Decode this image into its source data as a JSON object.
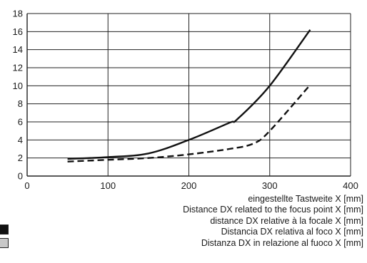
{
  "chart_data": {
    "type": "line",
    "title": "",
    "xlim": [
      0,
      400
    ],
    "ylim": [
      0,
      18
    ],
    "x_ticks": [
      0,
      100,
      200,
      300,
      400
    ],
    "y_ticks": [
      0,
      2,
      4,
      6,
      8,
      10,
      12,
      14,
      16,
      18
    ],
    "grid": true,
    "xlabel_lines": [
      "eingestellte Tastweite X [mm]",
      "Distance DX  related to the focus point X [mm]",
      "distance DX relative à la focale X [mm]",
      "Distancia DX  relativa al foco X [mm]",
      "Distanza DX  in relazione al fuoco X [mm]"
    ],
    "series": [
      {
        "style": "solid",
        "color": "#111111",
        "x": [
          50,
          100,
          150,
          200,
          250,
          260,
          300,
          350
        ],
        "y": [
          1.9,
          2.1,
          2.5,
          4.0,
          5.9,
          6.3,
          10.0,
          16.2
        ]
      },
      {
        "style": "dashed",
        "color": "#111111",
        "x": [
          50,
          100,
          150,
          200,
          250,
          280,
          300,
          350
        ],
        "y": [
          1.6,
          1.8,
          2.0,
          2.4,
          3.0,
          3.6,
          5.0,
          10.1
        ]
      }
    ]
  },
  "legend": {
    "swatches": [
      {
        "color": "#111111"
      },
      {
        "color": "#c8c8c8"
      }
    ]
  }
}
